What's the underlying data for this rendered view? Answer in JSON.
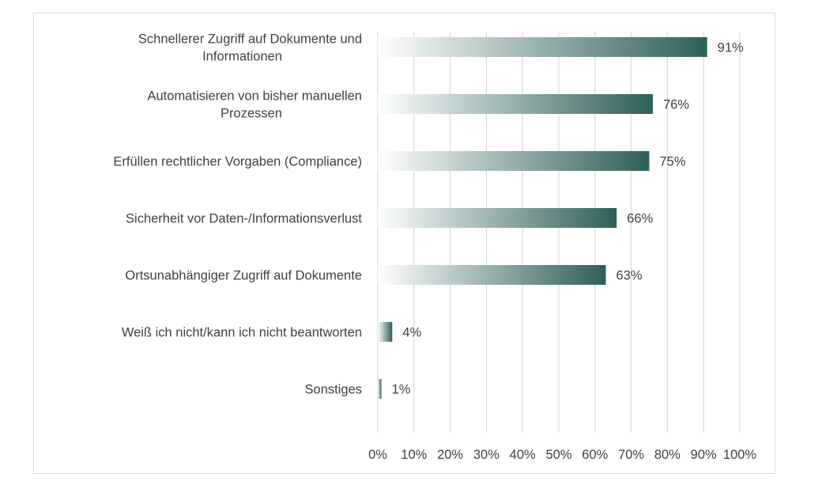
{
  "chart_data": {
    "type": "bar",
    "orientation": "horizontal",
    "categories": [
      "Schnellerer Zugriff auf Dokumente und Informationen",
      "Automatisieren von bisher manuellen Prozessen",
      "Erfüllen rechtlicher Vorgaben (Compliance)",
      "Sicherheit vor Daten-/Informationsverlust",
      "Ortsunabhängiger Zugriff auf Dokumente",
      "Weiß ich nicht/kann ich nicht beantworten",
      "Sonstiges"
    ],
    "values": [
      91,
      76,
      75,
      66,
      63,
      4,
      1
    ],
    "value_labels": [
      "91%",
      "76%",
      "75%",
      "66%",
      "63%",
      "4%",
      "1%"
    ],
    "xlim": [
      0,
      100
    ],
    "x_ticks": [
      0,
      10,
      20,
      30,
      40,
      50,
      60,
      70,
      80,
      90,
      100
    ],
    "x_tick_labels": [
      "0%",
      "10%",
      "20%",
      "30%",
      "40%",
      "50%",
      "60%",
      "70%",
      "80%",
      "90%",
      "100%"
    ],
    "grid": true,
    "legend": "none",
    "colors": {
      "bar_start": "#ffffff",
      "bar_end": "#2f5f5a",
      "grid": "#d9d9d9",
      "text": "#404040"
    }
  }
}
